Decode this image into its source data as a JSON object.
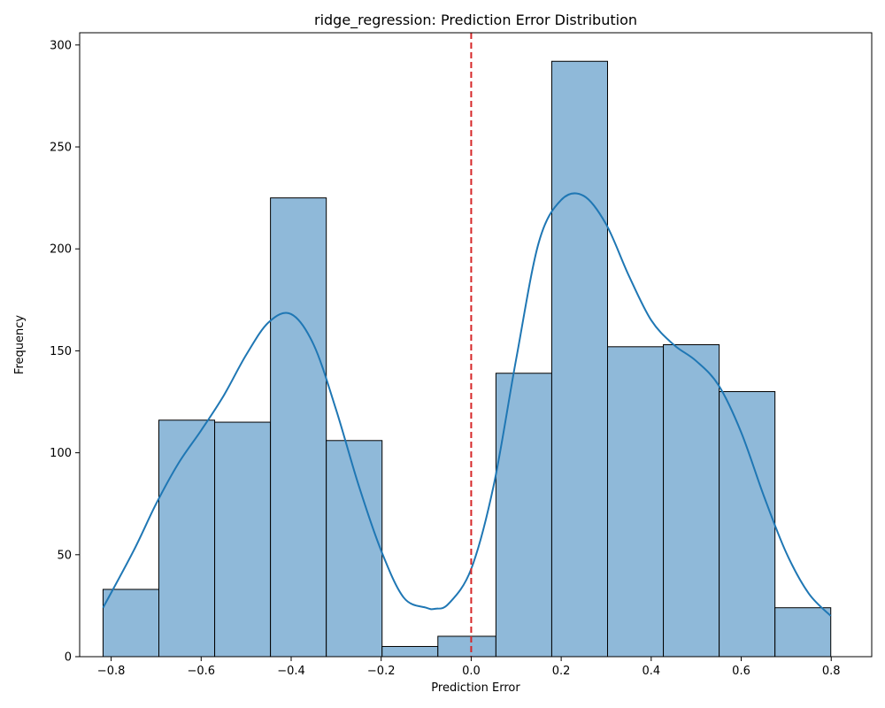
{
  "chart_data": {
    "type": "bar",
    "title": "ridge_regression: Prediction Error Distribution",
    "xlabel": "Prediction Error",
    "ylabel": "Frequency",
    "xlim": [
      -0.87,
      0.89
    ],
    "ylim": [
      0,
      306
    ],
    "xticks": [
      -0.8,
      -0.6,
      -0.4,
      -0.2,
      0.0,
      0.2,
      0.4,
      0.6,
      0.8
    ],
    "xtick_labels": [
      "−0.8",
      "−0.6",
      "−0.4",
      "−0.2",
      "0.0",
      "0.2",
      "0.4",
      "0.6",
      "0.8"
    ],
    "yticks": [
      0,
      50,
      100,
      150,
      200,
      250,
      300
    ],
    "ytick_labels": [
      "0",
      "50",
      "100",
      "150",
      "200",
      "250",
      "300"
    ],
    "bin_edges": [
      -0.818,
      -0.694,
      -0.57,
      -0.446,
      -0.322,
      -0.198,
      -0.074,
      0.055,
      0.179,
      0.303,
      0.427,
      0.551,
      0.675,
      0.799
    ],
    "counts": [
      33,
      116,
      115,
      225,
      106,
      5,
      10,
      139,
      292,
      152,
      153,
      130,
      24
    ],
    "kde": {
      "x": [
        -0.818,
        -0.75,
        -0.7,
        -0.65,
        -0.6,
        -0.55,
        -0.5,
        -0.45,
        -0.4,
        -0.35,
        -0.3,
        -0.25,
        -0.2,
        -0.15,
        -0.1,
        -0.08,
        -0.05,
        0.0,
        0.05,
        0.1,
        0.15,
        0.2,
        0.25,
        0.3,
        0.35,
        0.4,
        0.45,
        0.5,
        0.55,
        0.6,
        0.65,
        0.7,
        0.75,
        0.799
      ],
      "y": [
        24,
        52,
        75,
        95,
        111,
        128,
        148,
        164,
        168,
        153,
        121,
        84,
        52,
        29,
        24,
        23.5,
        26,
        43,
        84,
        146,
        203,
        224,
        226,
        212,
        187,
        165,
        153,
        145,
        133,
        110,
        79,
        51,
        31,
        20
      ]
    },
    "reference_line": {
      "x": 0.0,
      "color": "#d62728",
      "style": "dashed"
    },
    "colors": {
      "bar_fill": "#8fb9d9",
      "bar_edge": "#000000",
      "kde_line": "#1f77b4"
    },
    "grid": false,
    "legend": "none"
  }
}
